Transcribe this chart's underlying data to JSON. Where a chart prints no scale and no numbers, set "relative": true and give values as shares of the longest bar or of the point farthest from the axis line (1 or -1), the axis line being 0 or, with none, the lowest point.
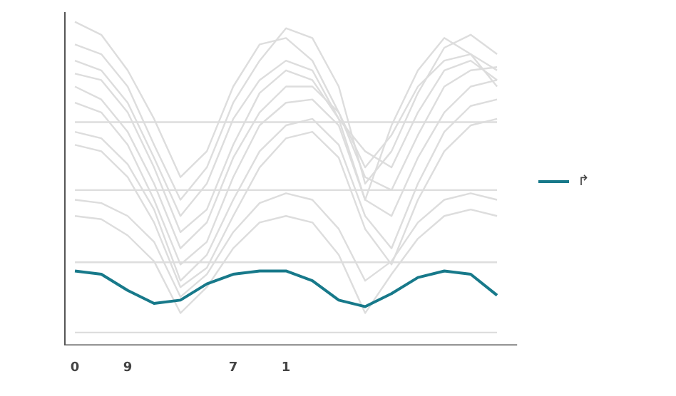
{
  "chart_data": {
    "type": "line",
    "relative": true,
    "legend": "right",
    "grid": false,
    "marker": "none",
    "line_style": "solid",
    "categories": [
      "0",
      null,
      "9",
      null,
      null,
      null,
      "7",
      null,
      "1",
      null,
      null,
      null,
      null,
      null,
      null,
      null,
      null
    ],
    "series": [
      {
        "color": "#dddddd",
        "values": [
          1.0,
          0.96,
          0.85,
          0.7,
          0.52,
          0.6,
          0.8,
          0.93,
          0.95,
          0.88,
          0.72,
          0.55,
          0.65,
          0.8,
          0.88,
          0.9,
          0.85
        ]
      },
      {
        "color": "#dddddd",
        "values": [
          0.93,
          0.9,
          0.8,
          0.62,
          0.45,
          0.55,
          0.75,
          0.88,
          0.98,
          0.95,
          0.8,
          0.5,
          0.6,
          0.78,
          0.92,
          0.96,
          0.9
        ]
      },
      {
        "color": "#dddddd",
        "values": [
          0.88,
          0.85,
          0.75,
          0.58,
          0.4,
          0.5,
          0.7,
          0.82,
          0.88,
          0.85,
          0.7,
          0.45,
          0.68,
          0.85,
          0.95,
          0.9,
          0.8
        ]
      },
      {
        "color": "#dddddd",
        "values": [
          0.84,
          0.82,
          0.72,
          0.55,
          0.35,
          0.42,
          0.62,
          0.78,
          0.85,
          0.82,
          0.7,
          0.6,
          0.55,
          0.72,
          0.85,
          0.88,
          0.82
        ]
      },
      {
        "color": "#dddddd",
        "values": [
          0.8,
          0.76,
          0.66,
          0.5,
          0.3,
          0.38,
          0.58,
          0.72,
          0.8,
          0.8,
          0.72,
          0.52,
          0.48,
          0.65,
          0.8,
          0.85,
          0.86
        ]
      },
      {
        "color": "#dddddd",
        "values": [
          0.75,
          0.72,
          0.62,
          0.45,
          0.25,
          0.32,
          0.52,
          0.68,
          0.75,
          0.76,
          0.68,
          0.45,
          0.4,
          0.58,
          0.72,
          0.8,
          0.82
        ]
      },
      {
        "color": "#dddddd",
        "values": [
          0.69,
          0.69,
          0.69,
          0.69,
          0.69,
          0.69,
          0.69,
          0.69,
          0.69,
          0.69,
          0.69,
          0.69,
          0.69,
          0.69,
          0.69,
          0.69,
          0.69
        ]
      },
      {
        "color": "#dddddd",
        "values": [
          0.66,
          0.64,
          0.56,
          0.42,
          0.2,
          0.28,
          0.45,
          0.6,
          0.68,
          0.7,
          0.62,
          0.4,
          0.3,
          0.5,
          0.66,
          0.74,
          0.76
        ]
      },
      {
        "color": "#dddddd",
        "values": [
          0.62,
          0.6,
          0.52,
          0.38,
          0.18,
          0.24,
          0.4,
          0.55,
          0.64,
          0.66,
          0.58,
          0.36,
          0.25,
          0.45,
          0.6,
          0.68,
          0.7
        ]
      },
      {
        "color": "#dddddd",
        "values": [
          0.48,
          0.48,
          0.48,
          0.48,
          0.48,
          0.48,
          0.48,
          0.48,
          0.48,
          0.48,
          0.48,
          0.48,
          0.48,
          0.48,
          0.48,
          0.48,
          0.48
        ]
      },
      {
        "color": "#dddddd",
        "values": [
          0.45,
          0.44,
          0.4,
          0.32,
          0.15,
          0.22,
          0.35,
          0.44,
          0.47,
          0.45,
          0.36,
          0.2,
          0.26,
          0.38,
          0.45,
          0.47,
          0.45
        ]
      },
      {
        "color": "#dddddd",
        "values": [
          0.4,
          0.39,
          0.34,
          0.26,
          0.1,
          0.18,
          0.3,
          0.38,
          0.4,
          0.38,
          0.28,
          0.1,
          0.22,
          0.33,
          0.4,
          0.42,
          0.4
        ]
      },
      {
        "color": "#dddddd",
        "values": [
          0.257,
          0.257,
          0.257,
          0.257,
          0.257,
          0.257,
          0.257,
          0.257,
          0.257,
          0.257,
          0.257,
          0.257,
          0.257,
          0.257,
          0.257,
          0.257,
          0.257
        ]
      },
      {
        "color": "#dddddd",
        "values": [
          0.04,
          0.04,
          0.04,
          0.04,
          0.04,
          0.04,
          0.04,
          0.04,
          0.04,
          0.04,
          0.04,
          0.04,
          0.04,
          0.04,
          0.04,
          0.04,
          0.04
        ]
      },
      {
        "name": "↱",
        "color": "#17798a",
        "values": [
          0.23,
          0.22,
          0.17,
          0.13,
          0.14,
          0.19,
          0.22,
          0.23,
          0.23,
          0.2,
          0.14,
          0.12,
          0.16,
          0.21,
          0.23,
          0.22,
          0.155
        ]
      }
    ]
  }
}
